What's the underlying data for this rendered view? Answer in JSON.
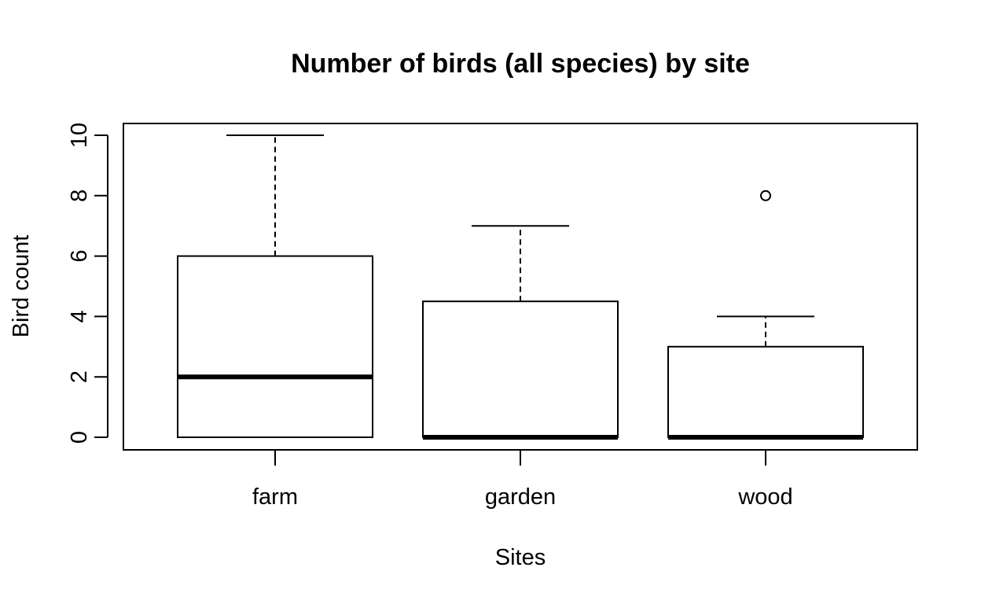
{
  "chart_data": {
    "type": "box",
    "title": "Number of birds (all species) by site",
    "xlabel": "Sites",
    "ylabel": "Bird count",
    "categories": [
      "farm",
      "garden",
      "wood"
    ],
    "boxes": [
      {
        "name": "farm",
        "min": 0,
        "q1": 0,
        "median": 2,
        "q3": 6,
        "max": 10,
        "outliers": []
      },
      {
        "name": "garden",
        "min": 0,
        "q1": 0,
        "median": 0,
        "q3": 4.5,
        "max": 7,
        "outliers": []
      },
      {
        "name": "wood",
        "min": 0,
        "q1": 0,
        "median": 0,
        "q3": 3,
        "max": 4,
        "outliers": [
          8
        ]
      }
    ],
    "ylim": [
      0,
      10
    ],
    "yticks": [
      0,
      2,
      4,
      6,
      8,
      10
    ],
    "grid": false,
    "legend": "none",
    "colors": {
      "box_fill": "#ffffff",
      "stroke": "#000000"
    }
  }
}
